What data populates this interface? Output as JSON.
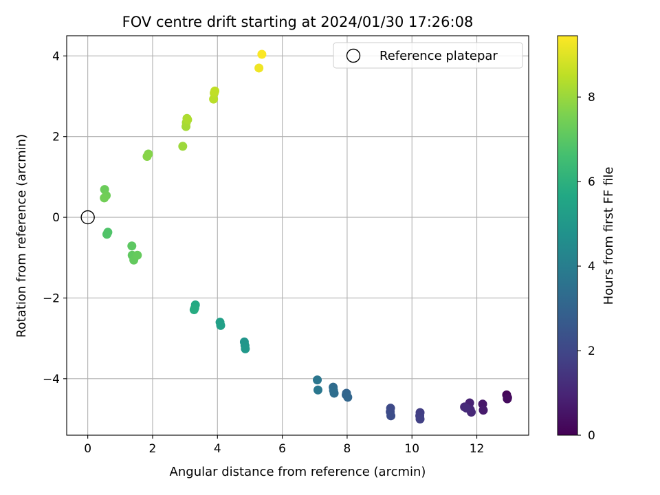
{
  "chart_data": {
    "type": "scatter",
    "title": "FOV centre drift starting at 2024/01/30 17:26:08",
    "xlabel": "Angular distance from reference (arcmin)",
    "ylabel": "Rotation from reference (arcmin)",
    "xlim": [
      -0.65,
      13.6
    ],
    "ylim": [
      -5.4,
      4.5
    ],
    "xticks": [
      0,
      2,
      4,
      6,
      8,
      10,
      12
    ],
    "yticks": [
      -4,
      -2,
      0,
      2,
      4
    ],
    "xtick_labels": [
      "0",
      "2",
      "4",
      "6",
      "8",
      "10",
      "12"
    ],
    "ytick_labels": [
      "−4",
      "−2",
      "0",
      "2",
      "4"
    ],
    "grid": true,
    "legend": {
      "position": "top-right",
      "entries": [
        "Reference platepar"
      ]
    },
    "reference_point": {
      "x": 0,
      "y": 0,
      "name": "Reference platepar"
    },
    "colorbar": {
      "label": "Hours from first FF file",
      "colormap": "viridis",
      "range": [
        0,
        9.45
      ],
      "ticks": [
        0,
        2,
        4,
        6,
        8
      ],
      "tick_labels": [
        "0",
        "2",
        "4",
        "6",
        "8"
      ]
    },
    "points": [
      {
        "x": 12.92,
        "y": -4.4,
        "c": 0.1
      },
      {
        "x": 12.95,
        "y": -4.47,
        "c": 0.2
      },
      {
        "x": 12.94,
        "y": -4.5,
        "c": 0.3
      },
      {
        "x": 12.18,
        "y": -4.63,
        "c": 0.6
      },
      {
        "x": 12.2,
        "y": -4.78,
        "c": 0.7
      },
      {
        "x": 11.78,
        "y": -4.6,
        "c": 0.9
      },
      {
        "x": 11.8,
        "y": -4.77,
        "c": 1.0
      },
      {
        "x": 11.83,
        "y": -4.83,
        "c": 1.05
      },
      {
        "x": 11.62,
        "y": -4.7,
        "c": 1.1
      },
      {
        "x": 11.68,
        "y": -4.73,
        "c": 1.15
      },
      {
        "x": 10.25,
        "y": -4.84,
        "c": 1.7
      },
      {
        "x": 10.24,
        "y": -4.92,
        "c": 1.75
      },
      {
        "x": 10.25,
        "y": -5.0,
        "c": 1.8
      },
      {
        "x": 9.34,
        "y": -4.73,
        "c": 2.1
      },
      {
        "x": 9.33,
        "y": -4.82,
        "c": 2.15
      },
      {
        "x": 9.35,
        "y": -4.92,
        "c": 2.2
      },
      {
        "x": 7.98,
        "y": -4.36,
        "c": 3.0
      },
      {
        "x": 7.97,
        "y": -4.4,
        "c": 3.05
      },
      {
        "x": 8.02,
        "y": -4.46,
        "c": 3.1
      },
      {
        "x": 7.57,
        "y": -4.21,
        "c": 3.3
      },
      {
        "x": 7.58,
        "y": -4.29,
        "c": 3.35
      },
      {
        "x": 7.6,
        "y": -4.36,
        "c": 3.4
      },
      {
        "x": 7.08,
        "y": -4.03,
        "c": 3.7
      },
      {
        "x": 7.1,
        "y": -4.28,
        "c": 3.75
      },
      {
        "x": 4.83,
        "y": -3.09,
        "c": 4.9
      },
      {
        "x": 4.85,
        "y": -3.18,
        "c": 4.95
      },
      {
        "x": 4.86,
        "y": -3.26,
        "c": 5.0
      },
      {
        "x": 4.08,
        "y": -2.6,
        "c": 5.3
      },
      {
        "x": 4.1,
        "y": -2.68,
        "c": 5.35
      },
      {
        "x": 3.32,
        "y": -2.17,
        "c": 5.7
      },
      {
        "x": 3.3,
        "y": -2.25,
        "c": 5.75
      },
      {
        "x": 3.28,
        "y": -2.29,
        "c": 5.8
      },
      {
        "x": 0.62,
        "y": -0.37,
        "c": 6.8
      },
      {
        "x": 0.59,
        "y": -0.42,
        "c": 6.85
      },
      {
        "x": 1.36,
        "y": -0.71,
        "c": 7.05
      },
      {
        "x": 1.37,
        "y": -0.94,
        "c": 7.1
      },
      {
        "x": 1.42,
        "y": -1.06,
        "c": 7.15
      },
      {
        "x": 1.53,
        "y": -0.94,
        "c": 7.2
      },
      {
        "x": 0.52,
        "y": 0.69,
        "c": 7.3
      },
      {
        "x": 0.57,
        "y": 0.54,
        "c": 7.35
      },
      {
        "x": 0.51,
        "y": 0.48,
        "c": 7.4
      },
      {
        "x": 1.87,
        "y": 1.57,
        "c": 7.7
      },
      {
        "x": 1.83,
        "y": 1.51,
        "c": 7.75
      },
      {
        "x": 2.93,
        "y": 1.76,
        "c": 8.05
      },
      {
        "x": 3.03,
        "y": 2.25,
        "c": 8.15
      },
      {
        "x": 3.04,
        "y": 2.35,
        "c": 8.2
      },
      {
        "x": 3.06,
        "y": 2.45,
        "c": 8.25
      },
      {
        "x": 3.08,
        "y": 2.42,
        "c": 8.3
      },
      {
        "x": 3.88,
        "y": 2.93,
        "c": 8.45
      },
      {
        "x": 3.9,
        "y": 3.08,
        "c": 8.5
      },
      {
        "x": 3.92,
        "y": 3.13,
        "c": 8.55
      },
      {
        "x": 5.28,
        "y": 3.7,
        "c": 9.25
      },
      {
        "x": 5.37,
        "y": 4.04,
        "c": 9.4
      }
    ]
  }
}
